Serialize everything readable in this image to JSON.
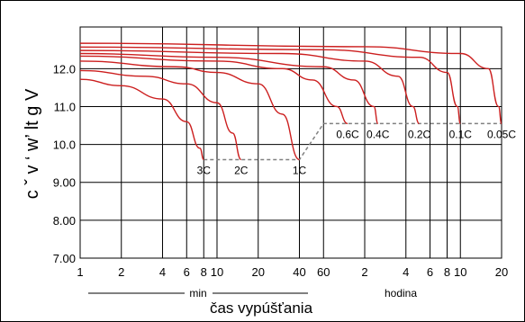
{
  "chart_data": {
    "type": "line",
    "ylabel": "c ˇ v ‘ w’ lt g V",
    "xlabel": "čas vypúšťania",
    "ylim": [
      7.0,
      13.1
    ],
    "y_ticks": [
      "7.00",
      "8.00",
      "9.00",
      "10.0",
      "11.0",
      "12.0"
    ],
    "x_ticks": [
      "1",
      "2",
      "4",
      "6",
      "8",
      "10",
      "20",
      "40",
      "60",
      "2",
      "4",
      "6",
      "8",
      "10",
      "20"
    ],
    "x_unit_min": "min",
    "x_unit_hour": "hodina",
    "grid": true,
    "series": [
      {
        "name": "3C",
        "x": [
          1,
          2,
          4,
          6,
          7.5,
          8
        ],
        "y": [
          11.72,
          11.55,
          11.2,
          10.6,
          9.9,
          9.6
        ]
      },
      {
        "name": "2C",
        "x": [
          1,
          3,
          6,
          10,
          13,
          15
        ],
        "y": [
          11.95,
          11.8,
          11.6,
          11.1,
          10.3,
          9.6
        ]
      },
      {
        "name": "1C",
        "x": [
          1,
          5,
          10,
          20,
          30,
          40
        ],
        "y": [
          12.2,
          12.05,
          11.9,
          11.6,
          10.8,
          9.6
        ]
      },
      {
        "name": "0.6C",
        "x": [
          1,
          10,
          30,
          50,
          75,
          90
        ],
        "y": [
          12.33,
          12.2,
          12.0,
          11.7,
          11.0,
          10.55
        ]
      },
      {
        "name": "0.4C",
        "x": [
          1,
          10,
          60,
          100,
          140,
          150
        ],
        "y": [
          12.4,
          12.3,
          12.05,
          11.7,
          11.0,
          10.55
        ]
      },
      {
        "name": "0.2C",
        "x": [
          1,
          30,
          120,
          210,
          270,
          300
        ],
        "y": [
          12.48,
          12.4,
          12.2,
          11.8,
          11.0,
          10.55
        ]
      },
      {
        "name": "0.1C",
        "x": [
          1,
          60,
          300,
          480,
          570,
          600
        ],
        "y": [
          12.57,
          12.5,
          12.3,
          11.9,
          11.0,
          10.55
        ]
      },
      {
        "name": "0.05C",
        "x": [
          1,
          120,
          600,
          960,
          1140,
          1200
        ],
        "y": [
          12.67,
          12.58,
          12.4,
          12.0,
          11.0,
          10.55
        ]
      }
    ],
    "end_voltage_line": {
      "x": [
        8,
        40,
        60,
        1200
      ],
      "y": [
        9.6,
        9.6,
        10.55,
        10.55
      ]
    }
  },
  "colors": {
    "series": "#cc1f1f",
    "grid": "#000000",
    "endline": "#808080"
  }
}
